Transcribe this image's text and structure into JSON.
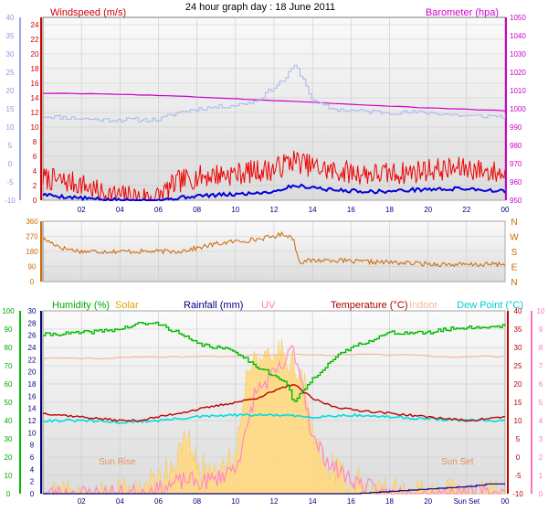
{
  "title": "24 hour graph day : 18 June 2011",
  "colors": {
    "wind_avg": "#0000dd",
    "wind_gust": "#ee0000",
    "barometer": "#cc00cc",
    "temp_avg": "#a8b8ee",
    "direction": "#cc6600",
    "humidity": "#00bb00",
    "solar": "#ffd980",
    "rainfall": "#000080",
    "uv": "#ff88cc",
    "temperature": "#bb0000",
    "indoor": "#f0b898",
    "dewpoint": "#00dddd"
  },
  "chart_data": [
    {
      "type": "line",
      "panel": "wind",
      "title": "24 hour graph day : 18 June 2011",
      "left_axis": {
        "label": "Windspeed (m/s)",
        "range": [
          0,
          25
        ],
        "ticks": [
          0,
          2,
          4,
          6,
          8,
          10,
          12,
          14,
          16,
          18,
          20,
          22,
          24
        ]
      },
      "left_outer_axis": {
        "range": [
          -10,
          40
        ],
        "ticks": [
          -10,
          -5,
          0,
          5,
          10,
          15,
          20,
          25,
          30,
          35,
          40
        ]
      },
      "right_axis": {
        "label": "Barometer (hpa)",
        "range": [
          950,
          1050
        ],
        "ticks": [
          950,
          960,
          970,
          980,
          990,
          1000,
          1010,
          1020,
          1030,
          1040,
          1050
        ]
      },
      "x_ticks": [
        "02",
        "04",
        "06",
        "08",
        "10",
        "12",
        "14",
        "16",
        "18",
        "20",
        "22",
        "00"
      ],
      "series": [
        {
          "name": "Barometer (hpa)",
          "axis": "right",
          "x": [
            0,
            4,
            8,
            12,
            16,
            20,
            24
          ],
          "values": [
            1008.5,
            1008,
            1006.5,
            1004.5,
            1002.5,
            1000.5,
            999
          ]
        },
        {
          "axis": "left_outer",
          "x": [
            0,
            3,
            6,
            6.5,
            7,
            8,
            9,
            10,
            11,
            11.5,
            12,
            12.5,
            12.8,
            13,
            13.3,
            13.6,
            14,
            15,
            16,
            18,
            20,
            22,
            23,
            24
          ],
          "values": [
            13,
            12,
            12,
            13,
            14,
            15,
            15.5,
            16,
            17,
            19,
            21,
            23,
            25,
            27,
            25,
            22,
            17,
            15,
            14.5,
            14,
            14,
            13,
            13,
            13
          ]
        },
        {
          "name": "Windspeed (m/s)",
          "axis": "left",
          "x": [
            0,
            1,
            2,
            3,
            4,
            5,
            6,
            7,
            8,
            9,
            10,
            11,
            12,
            13,
            14,
            15,
            16,
            17,
            18,
            19,
            20,
            21,
            22,
            23,
            24
          ],
          "values": [
            0.8,
            0.5,
            0.3,
            0.1,
            0,
            0,
            0,
            0.3,
            0.6,
            0.7,
            0.8,
            1.0,
            1.2,
            2.0,
            1.8,
            1.4,
            1.3,
            1.2,
            1.2,
            1.4,
            1.5,
            1.5,
            1.6,
            1.4,
            1.2
          ]
        },
        {
          "axis": "left",
          "x": [
            0,
            1,
            2,
            3,
            4,
            5,
            6,
            7,
            8,
            9,
            10,
            11,
            12,
            13,
            14,
            15,
            16,
            17,
            18,
            19,
            20,
            21,
            22,
            23,
            24
          ],
          "values": [
            3,
            2.6,
            2.2,
            1,
            0.6,
            0.4,
            0.5,
            2.5,
            3.2,
            3.5,
            3.6,
            4.0,
            4.2,
            5.5,
            4.6,
            4.0,
            3.8,
            3.6,
            3.6,
            3.8,
            4.2,
            4.2,
            4.4,
            4.0,
            3.6
          ]
        }
      ]
    },
    {
      "type": "line",
      "panel": "direction",
      "left_axis": {
        "range": [
          0,
          360
        ],
        "ticks": [
          0,
          90,
          180,
          270,
          360
        ]
      },
      "right_labels": [
        "N",
        "W",
        "S",
        "E",
        "N"
      ],
      "x_ticks": [],
      "series": [
        {
          "axis": "left",
          "x": [
            0,
            0.5,
            1,
            2,
            3,
            4,
            5,
            6,
            7,
            8,
            9,
            10,
            11,
            12,
            12.5,
            13,
            13.3,
            14,
            15,
            16,
            18,
            20,
            22,
            24
          ],
          "values": [
            255,
            230,
            200,
            180,
            180,
            180,
            180,
            180,
            180,
            200,
            225,
            240,
            250,
            270,
            285,
            260,
            120,
            125,
            130,
            120,
            115,
            105,
            100,
            105
          ]
        }
      ]
    },
    {
      "type": "area",
      "panel": "weather",
      "labels": {
        "humidity": "Humidity (%)",
        "solar": "Solar",
        "rainfall": "Rainfall (mm)",
        "uv": "UV",
        "temperature": "Temperature (°C)",
        "indoor": "Indoor",
        "dewpoint": "Dew Point (°C)"
      },
      "humidity_axis": {
        "range": [
          0,
          100
        ],
        "ticks": [
          0,
          10,
          20,
          30,
          40,
          50,
          60,
          70,
          80,
          90,
          100
        ]
      },
      "rain_axis": {
        "range": [
          0,
          30
        ],
        "ticks": [
          0,
          2,
          4,
          6,
          8,
          10,
          12,
          14,
          16,
          18,
          20,
          22,
          24,
          26,
          28,
          30
        ]
      },
      "temperature_axis": {
        "range": [
          -10,
          40
        ],
        "ticks": [
          -10,
          -5,
          0,
          5,
          10,
          15,
          20,
          25,
          30,
          35,
          40
        ]
      },
      "uv_axis": {
        "range": [
          0,
          10
        ],
        "ticks": [
          0,
          1,
          2,
          3,
          4,
          5,
          6,
          7,
          8,
          9,
          10
        ]
      },
      "x_ticks": [
        "02",
        "04",
        "06",
        "08",
        "10",
        "12",
        "14",
        "16",
        "18",
        "20",
        "Sun Set",
        "00"
      ],
      "annotations": [
        "Sun Rise",
        "Sun Set"
      ],
      "series": [
        {
          "name": "Humidity (%)",
          "axis": "humidity",
          "x": [
            0,
            2,
            4,
            5,
            6,
            7,
            8,
            9,
            10,
            11,
            11.5,
            12,
            12.5,
            12.8,
            13,
            13.5,
            14,
            15,
            16,
            18,
            20,
            21,
            22,
            23,
            24
          ],
          "values": [
            87,
            88,
            90,
            93,
            93,
            88,
            82,
            80,
            78,
            70,
            68,
            64,
            62,
            56,
            50,
            56,
            63,
            73,
            80,
            88,
            88,
            90,
            91,
            91,
            92
          ]
        },
        {
          "name": "Indoor",
          "axis": "temperature",
          "x": [
            0,
            3,
            6,
            9,
            12,
            15,
            18,
            21,
            24
          ],
          "values": [
            27,
            27,
            27.5,
            27.5,
            28,
            28,
            28,
            27.5,
            27.5
          ]
        },
        {
          "name": "Temperature (°C)",
          "axis": "temperature",
          "x": [
            0,
            2,
            4,
            5,
            6,
            7,
            8,
            9,
            10,
            11,
            12,
            12.5,
            13,
            13.5,
            14,
            15,
            16,
            18,
            20,
            22,
            23,
            24
          ],
          "values": [
            12,
            11,
            10,
            10,
            11,
            12,
            13,
            14,
            15,
            16,
            18,
            19,
            20,
            18,
            16,
            14,
            13,
            12,
            11,
            10,
            10.5,
            11
          ]
        },
        {
          "name": "Dew Point (°C)",
          "axis": "temperature",
          "x": [
            0,
            2,
            4,
            6,
            8,
            10,
            12,
            14,
            16,
            18,
            20,
            22,
            24
          ],
          "values": [
            10,
            10,
            9.5,
            10,
            11,
            11.5,
            11.5,
            11,
            11.5,
            11,
            10.5,
            10,
            10
          ]
        },
        {
          "name": "Solar",
          "axis": "uv",
          "x": [
            4,
            5,
            6,
            7,
            7.5,
            8,
            8.5,
            9,
            10,
            10.5,
            11,
            11.5,
            12,
            12.5,
            13,
            13.5,
            14,
            15,
            16,
            16.5,
            17,
            17.5
          ],
          "values": [
            0,
            0.3,
            0.8,
            2,
            3,
            1.5,
            1.2,
            1.5,
            2,
            6,
            8,
            7,
            7.5,
            8,
            7,
            6.5,
            3,
            1.5,
            0.7,
            0.5,
            0.1,
            0
          ]
        },
        {
          "name": "UV",
          "axis": "uv",
          "x": [
            4,
            6,
            7,
            7.5,
            8,
            9,
            10,
            10.5,
            11,
            11.5,
            12,
            12.5,
            13,
            13.5,
            14,
            15,
            16,
            17,
            17.5
          ],
          "values": [
            0,
            0.2,
            0.6,
            0.8,
            0.6,
            0.8,
            1.5,
            3,
            5.5,
            6,
            6.5,
            7,
            8,
            6,
            3,
            1.5,
            0.8,
            0.3,
            0
          ]
        },
        {
          "name": "Rainfall (mm)",
          "axis": "rain",
          "x": [
            0,
            16,
            18,
            20,
            22,
            23,
            24
          ],
          "values": [
            0,
            0,
            0.4,
            0.8,
            1.2,
            1.6,
            1.6
          ]
        }
      ]
    }
  ]
}
